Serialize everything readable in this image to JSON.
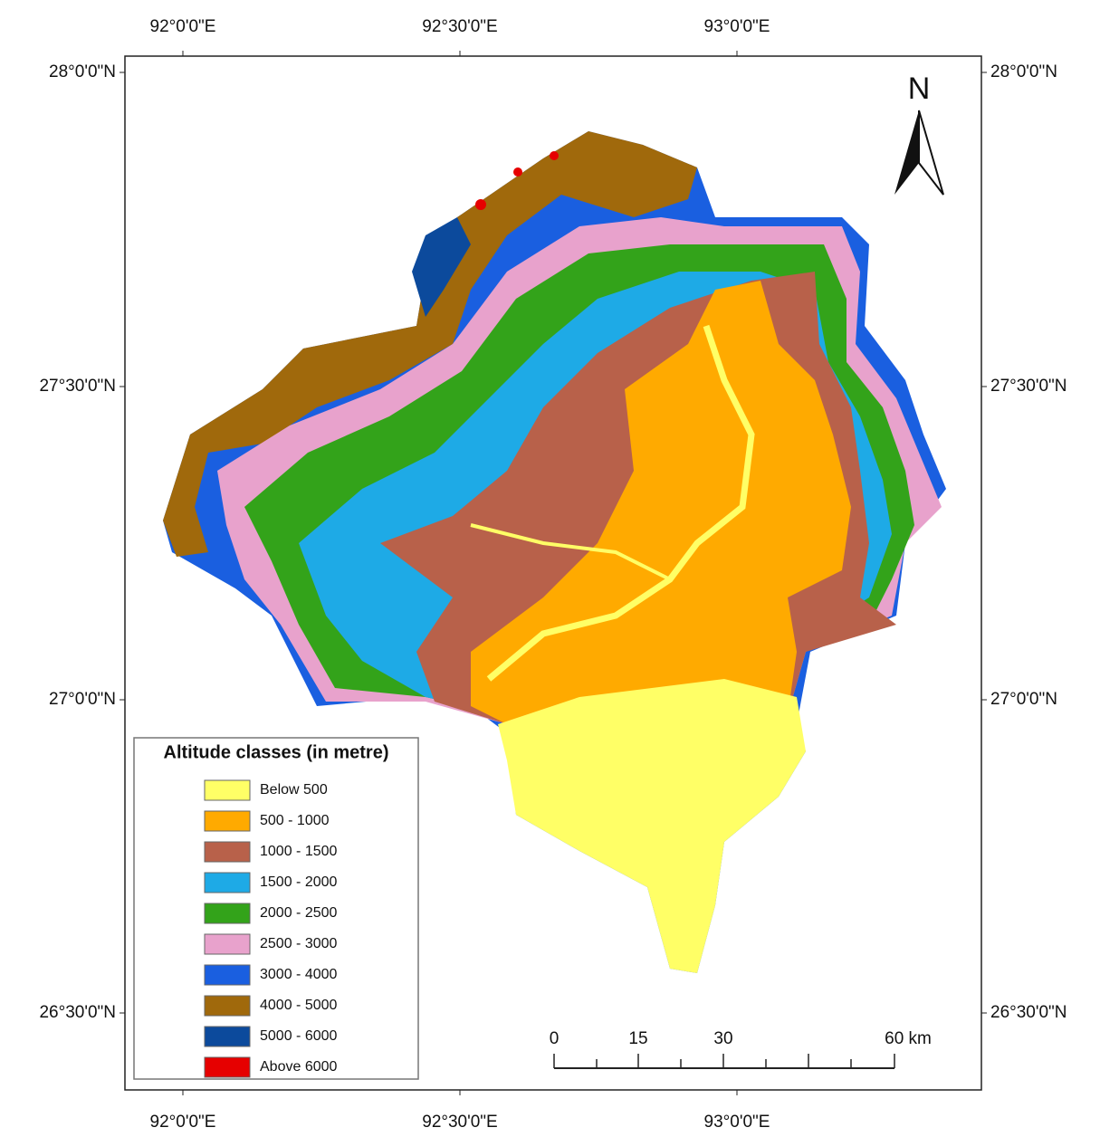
{
  "map": {
    "longitude_labels": [
      "92°0'0\"E",
      "92°30'0\"E",
      "93°0'0\"E"
    ],
    "latitude_labels": [
      "28°0'0\"N",
      "27°30'0\"N",
      "27°0'0\"N",
      "26°30'0\"N"
    ],
    "north_label": "N",
    "legend": {
      "title": "Altitude classes (in metre)",
      "items": [
        {
          "label": "Below 500",
          "color": "#ffff66"
        },
        {
          "label": "500 - 1000",
          "color": "#ffaa00"
        },
        {
          "label": "1000 - 1500",
          "color": "#b8614a"
        },
        {
          "label": "1500 - 2000",
          "color": "#1eaae6"
        },
        {
          "label": "2000 - 2500",
          "color": "#33a31a"
        },
        {
          "label": "2500 - 3000",
          "color": "#e8a2cc"
        },
        {
          "label": "3000 - 4000",
          "color": "#1a5fe0"
        },
        {
          "label": "4000 - 5000",
          "color": "#a0690c"
        },
        {
          "label": "5000 - 6000",
          "color": "#0c4a9c"
        },
        {
          "label": "Above 6000",
          "color": "#e60000"
        }
      ]
    },
    "scale_bar": {
      "labels": [
        "0",
        "15",
        "30",
        "60 km"
      ]
    }
  }
}
